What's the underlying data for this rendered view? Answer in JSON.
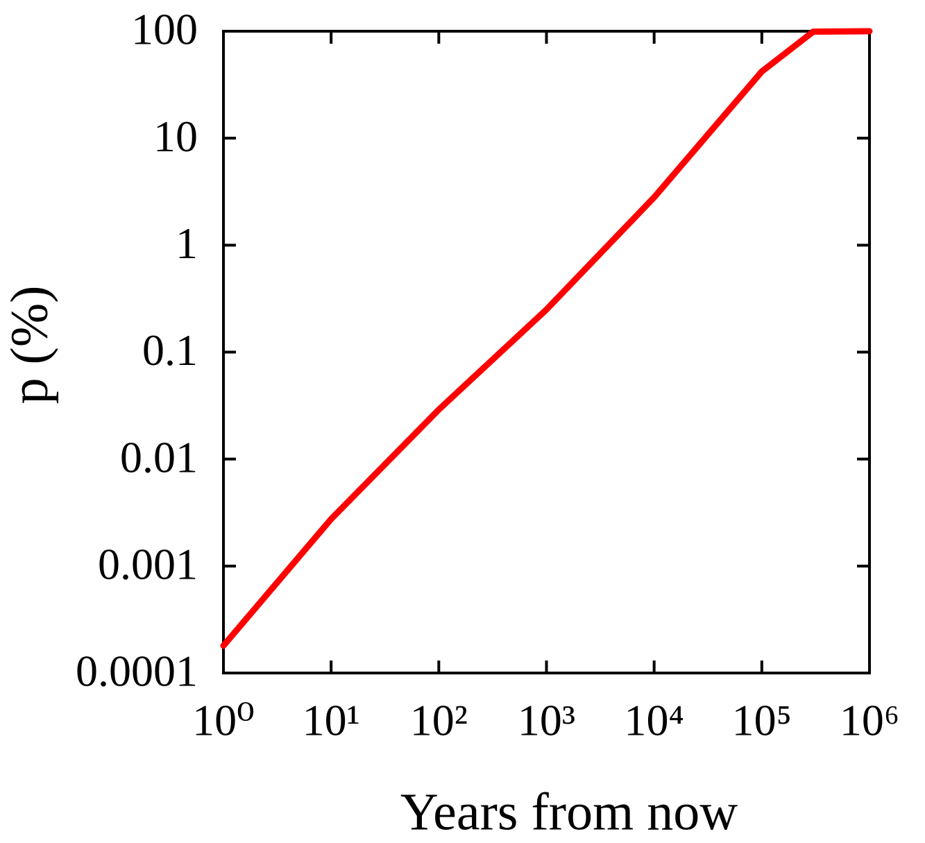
{
  "chart_data": {
    "type": "line",
    "log_x": true,
    "log_y": true,
    "x_label": "Years from now",
    "y_label": "p (%)",
    "x": [
      1,
      10,
      100,
      1000,
      10000,
      100000,
      300000,
      1000000
    ],
    "series": [
      {
        "name": "p",
        "color": "#ff0000",
        "values": [
          0.00018,
          0.00275,
          0.029,
          0.25,
          2.8,
          42,
          99,
          100
        ]
      }
    ],
    "xlim": [
      1,
      1000000
    ],
    "xticks": [
      {
        "value": 1,
        "label": "10⁰"
      },
      {
        "value": 10,
        "label": "10¹"
      },
      {
        "value": 100,
        "label": "10²"
      },
      {
        "value": 1000,
        "label": "10³"
      },
      {
        "value": 10000,
        "label": "10⁴"
      },
      {
        "value": 100000,
        "label": "10⁵"
      },
      {
        "value": 1000000,
        "label": "10⁶"
      }
    ],
    "ylim": [
      0.0001,
      100
    ],
    "yticks": [
      0.0001,
      0.001,
      0.01,
      0.1,
      1,
      10,
      100
    ]
  }
}
